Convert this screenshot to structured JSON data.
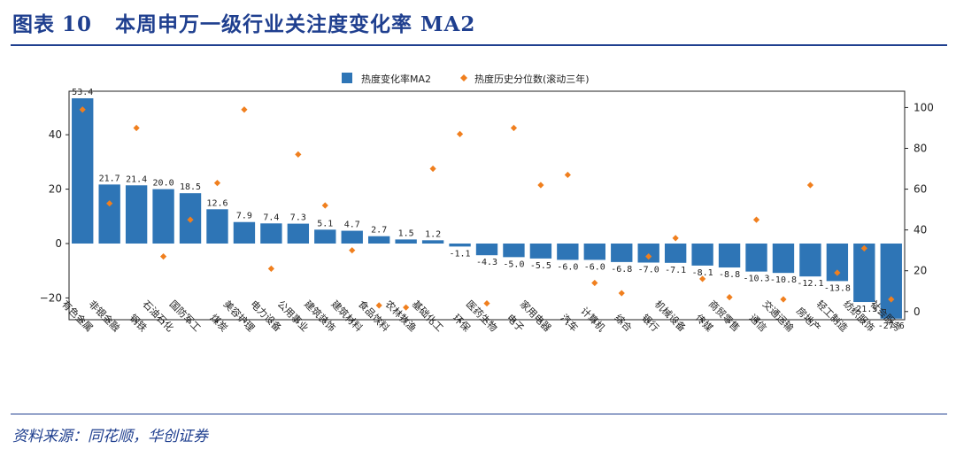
{
  "header": {
    "figure_label": "图表",
    "figure_number": "10",
    "title": "本周申万一级行业关注度变化率 MA2"
  },
  "footer": {
    "source": "资料来源：同花顺，华创证券"
  },
  "chart_data": {
    "type": "bar",
    "title": "本周申万一级行业关注度变化率 MA2",
    "categories": [
      "有色金属",
      "非银金融",
      "钢铁",
      "石油石化",
      "国防军工",
      "煤炭",
      "美容护理",
      "电力设备",
      "公用事业",
      "建筑装饰",
      "建筑材料",
      "食品饮料",
      "农林牧渔",
      "基础化工",
      "环保",
      "医药生物",
      "电子",
      "家用电器",
      "汽车",
      "计算机",
      "综合",
      "银行",
      "机械设备",
      "传媒",
      "商贸零售",
      "通信",
      "交通运输",
      "房地产",
      "轻工制造",
      "纺织服饰",
      "社会服务"
    ],
    "series": [
      {
        "name": "热度变化率MA2",
        "axis": "left",
        "color": "#2e75b6",
        "values": [
          53.4,
          21.7,
          21.4,
          20.0,
          18.5,
          12.6,
          7.9,
          7.4,
          7.3,
          5.1,
          4.7,
          2.7,
          1.5,
          1.2,
          -1.1,
          -4.3,
          -5.0,
          -5.5,
          -6.0,
          -6.0,
          -6.8,
          -7.0,
          -7.1,
          -8.1,
          -8.8,
          -10.3,
          -10.8,
          -12.1,
          -13.8,
          -21.5,
          -27.6
        ]
      },
      {
        "name": "热度历史分位数(滚动三年)",
        "axis": "right",
        "color": "#f07f1e",
        "values": [
          99,
          53,
          90,
          27,
          45,
          63,
          99,
          21,
          77,
          52,
          30,
          3,
          2,
          70,
          87,
          4,
          90,
          62,
          67,
          14,
          9,
          27,
          36,
          16,
          7,
          45,
          6,
          62,
          19,
          31,
          6
        ]
      }
    ],
    "data_labels": [
      "53.4",
      "21.7",
      "21.4",
      "20.0",
      "18.5",
      "12.6",
      "7.9",
      "7.4",
      "7.3",
      "5.1",
      "4.7",
      "2.7",
      "1.5",
      "1.2",
      "-1.1",
      "-4.3",
      "-5.0",
      "-5.5",
      "-6.0",
      "-6.0",
      "-6.8",
      "-7.0",
      "-7.1",
      "-8.1",
      "-8.8",
      "-10.3",
      "-10.8",
      "-12.1",
      "-13.8",
      "-21.5",
      "-27.6"
    ],
    "left_axis": {
      "ylim": [
        -28,
        56
      ],
      "ticks": [
        40,
        20,
        0,
        -20
      ],
      "tick_labels": [
        "40",
        "20",
        "0",
        "−20"
      ]
    },
    "right_axis": {
      "ylim": [
        -4,
        108
      ],
      "ticks": [
        100,
        80,
        60,
        40,
        20,
        0
      ],
      "tick_labels": [
        "100",
        "80",
        "60",
        "40",
        "20",
        "0"
      ]
    },
    "legend": {
      "position": "top-center",
      "bar_label": "热度变化率MA2",
      "marker_label": "热度历史分位数(滚动三年)"
    },
    "grid": false
  }
}
